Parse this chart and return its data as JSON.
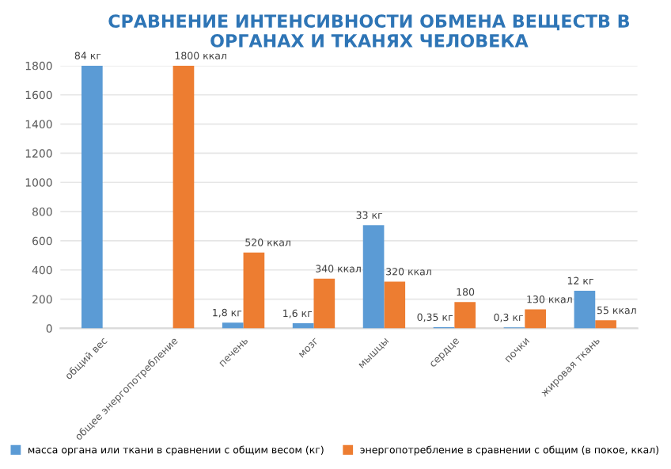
{
  "chart_data": {
    "type": "bar",
    "title": "СРАВНЕНИЕ ИНТЕНСИВНОСТИ ОБМЕНА ВЕЩЕСТВ В ОРГАНАХ И ТКАНЯХ ЧЕЛОВЕКА",
    "categories": [
      "общий вес",
      "общее энергопотребление",
      "печень",
      "мозг",
      "мышцы",
      "сердце",
      "почки",
      "жировая ткань"
    ],
    "series": [
      {
        "name": "масса органа или ткани в сравнении с общим весом (кг)",
        "color": "#5b9bd5",
        "axis": "y2",
        "values": [
          84,
          null,
          1.8,
          1.6,
          33,
          0.35,
          0.3,
          12
        ],
        "value_labels": [
          "84 кг",
          null,
          "1,8 кг",
          "1,6 кг",
          "33 кг",
          "0,35 кг",
          "0,3 кг",
          "12 кг"
        ]
      },
      {
        "name": "энергопотребление в сравнении с общим (в покое, ккал)",
        "color": "#ed7d31",
        "values": [
          null,
          1800,
          520,
          340,
          320,
          180,
          130,
          55
        ],
        "value_labels": [
          null,
          "1800 ккал",
          "520 ккал",
          "340 ккал",
          "320 ккал",
          "180",
          "130 ккал",
          "55 ккал"
        ]
      }
    ],
    "ylim": [
      0,
      1800
    ],
    "yticks": [
      0,
      200,
      400,
      600,
      800,
      1000,
      1200,
      1400,
      1600,
      1800
    ],
    "y2lim": [
      0,
      84
    ],
    "grid": "y",
    "legend": "bottom"
  }
}
